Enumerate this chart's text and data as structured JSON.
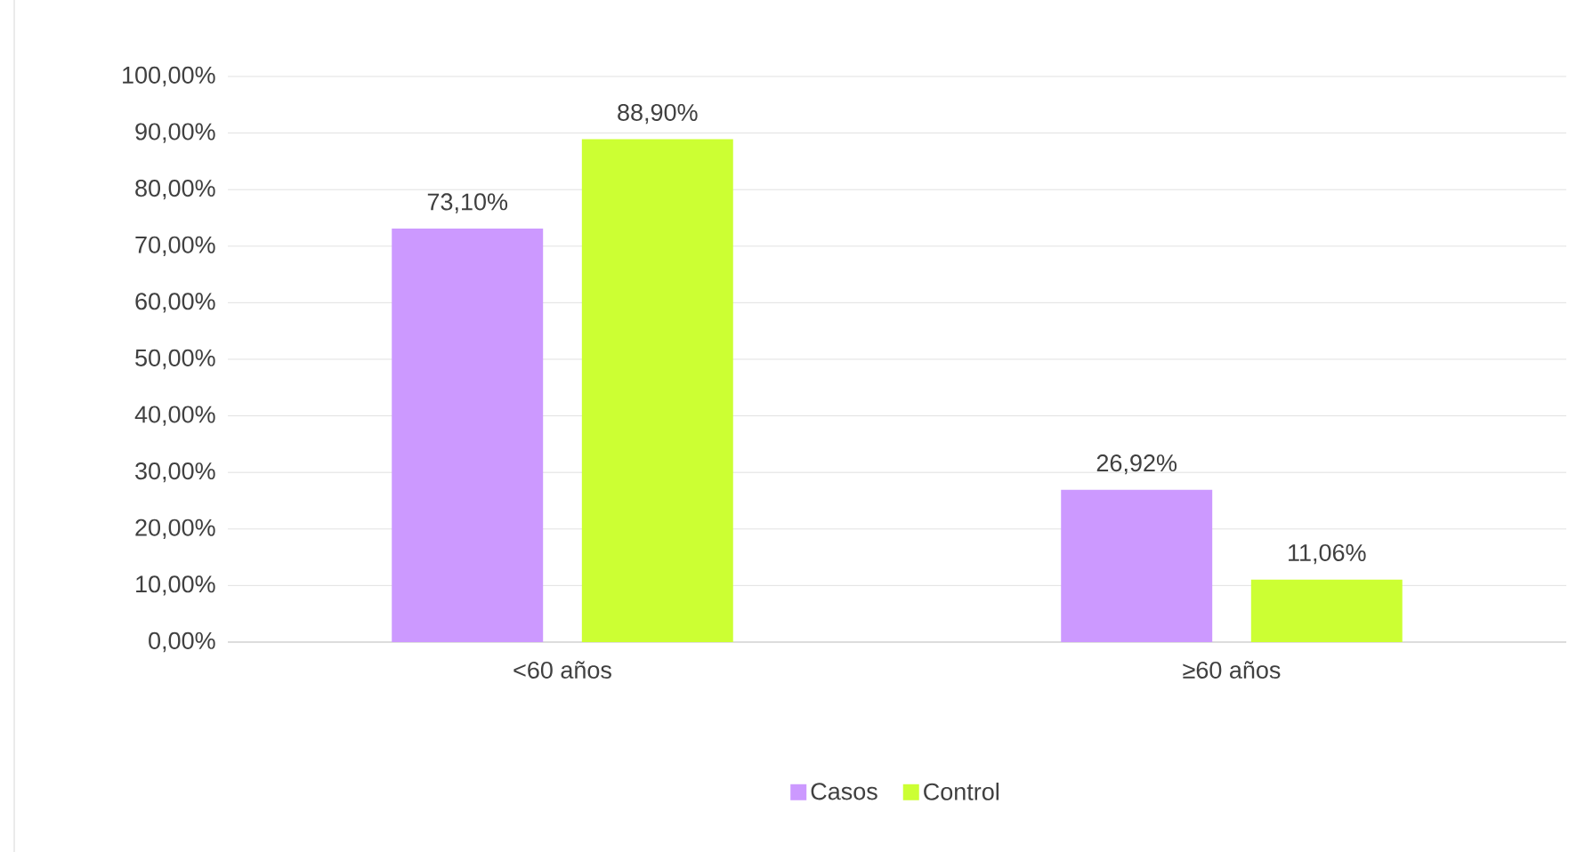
{
  "chart_data": {
    "type": "bar",
    "categories": [
      "<60 años",
      "≥60 años"
    ],
    "series": [
      {
        "name": "Casos",
        "color": "#cc99ff",
        "values": [
          73.1,
          26.92
        ],
        "value_labels": [
          "73,10%",
          "26,92%"
        ]
      },
      {
        "name": "Control",
        "color": "#ccff33",
        "values": [
          88.9,
          11.06
        ],
        "value_labels": [
          "88,90%",
          "11,06%"
        ]
      }
    ],
    "ylim": [
      0,
      100
    ],
    "yticks": [
      {
        "value": 0,
        "label": "0,00%"
      },
      {
        "value": 10,
        "label": "10,00%"
      },
      {
        "value": 20,
        "label": "20,00%"
      },
      {
        "value": 30,
        "label": "30,00%"
      },
      {
        "value": 40,
        "label": "40,00%"
      },
      {
        "value": 50,
        "label": "50,00%"
      },
      {
        "value": 60,
        "label": "60,00%"
      },
      {
        "value": 70,
        "label": "70,00%"
      },
      {
        "value": 80,
        "label": "80,00%"
      },
      {
        "value": 90,
        "label": "90,00%"
      },
      {
        "value": 100,
        "label": "100,00%"
      }
    ],
    "grid": "y",
    "legend": "bottom"
  }
}
